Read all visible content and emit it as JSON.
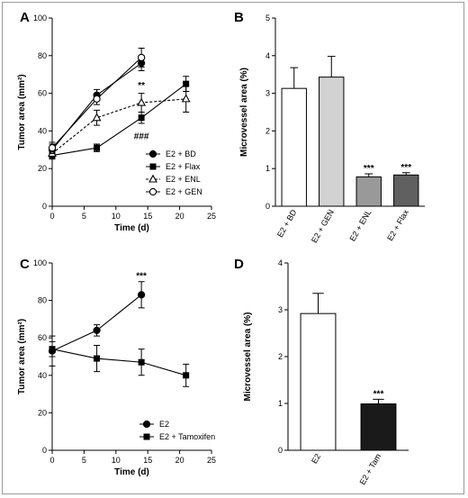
{
  "chart_data": [
    {
      "id": "A",
      "type": "line",
      "panel_label": "A",
      "xlabel": "Time (d)",
      "ylabel": "Tumor area (mm²)",
      "xlim": [
        0,
        25
      ],
      "ylim": [
        0,
        100
      ],
      "xticks": [
        0,
        5,
        10,
        15,
        20,
        25
      ],
      "yticks": [
        0,
        20,
        40,
        60,
        80,
        100
      ],
      "legend_position": "bottom-right",
      "series": [
        {
          "name": "E2 + BD",
          "marker": "filled-circle",
          "line": "solid",
          "x": [
            0,
            7,
            14
          ],
          "y": [
            30,
            59,
            76
          ],
          "err": [
            3,
            3,
            4
          ]
        },
        {
          "name": "E2 + Flax",
          "marker": "filled-square",
          "line": "solid",
          "x": [
            0,
            7,
            14,
            21
          ],
          "y": [
            27,
            31,
            47,
            65
          ],
          "err": [
            2,
            2,
            3,
            4
          ]
        },
        {
          "name": "E2 + ENL",
          "marker": "open-triangle",
          "line": "dashed",
          "x": [
            0,
            7,
            14,
            21
          ],
          "y": [
            28,
            47,
            55,
            57
          ],
          "err": [
            2,
            4,
            5,
            7
          ]
        },
        {
          "name": "E2 + GEN",
          "marker": "open-circle",
          "line": "solid",
          "x": [
            0,
            7,
            14
          ],
          "y": [
            31,
            57,
            79
          ],
          "err": [
            3,
            3,
            5
          ]
        }
      ],
      "annotations": [
        {
          "text": "**",
          "x": 14,
          "y": 64
        },
        {
          "text": "###",
          "x": 14,
          "y": 37
        }
      ]
    },
    {
      "id": "B",
      "type": "bar",
      "panel_label": "B",
      "ylabel": "Microvessel area (%)",
      "ylim": [
        0,
        5
      ],
      "yticks": [
        0,
        1,
        2,
        3,
        4,
        5
      ],
      "categories": [
        "E2 + BD",
        "E2 + GEN",
        "E2 + ENL",
        "E2 + Flax"
      ],
      "values": [
        3.13,
        3.43,
        0.78,
        0.83
      ],
      "err": [
        0.55,
        0.55,
        0.08,
        0.06
      ],
      "colors": [
        "#ffffff",
        "#d2d2d2",
        "#999999",
        "#606060"
      ],
      "annotations": [
        "",
        "",
        "***",
        "***"
      ]
    },
    {
      "id": "C",
      "type": "line",
      "panel_label": "C",
      "xlabel": "Time (d)",
      "ylabel": "Tumor area (mm²)",
      "xlim": [
        0,
        25
      ],
      "ylim": [
        0,
        100
      ],
      "xticks": [
        0,
        5,
        10,
        15,
        20,
        25
      ],
      "yticks": [
        0,
        20,
        40,
        60,
        80,
        100
      ],
      "legend_position": "bottom-center",
      "series": [
        {
          "name": "E2",
          "marker": "filled-circle",
          "line": "solid",
          "x": [
            0,
            7,
            14
          ],
          "y": [
            53,
            64,
            83
          ],
          "err": [
            8,
            3,
            7
          ]
        },
        {
          "name": "E2 + Tamoxifen",
          "marker": "filled-square",
          "line": "solid",
          "x": [
            0,
            7,
            14,
            21
          ],
          "y": [
            54,
            49,
            47,
            40
          ],
          "err": [
            4,
            7,
            7,
            6
          ]
        }
      ],
      "annotations": [
        {
          "text": "***",
          "x": 14,
          "y": 93
        }
      ]
    },
    {
      "id": "D",
      "type": "bar",
      "panel_label": "D",
      "ylabel": "Microvessel area (%)",
      "ylim": [
        0,
        4
      ],
      "yticks": [
        0,
        1,
        2,
        3,
        4
      ],
      "categories": [
        "E2",
        "E2 + Tam"
      ],
      "values": [
        2.92,
        0.99
      ],
      "err": [
        0.43,
        0.1
      ],
      "colors": [
        "#ffffff",
        "#1a1a1a"
      ],
      "annotations": [
        "",
        "***"
      ]
    }
  ]
}
